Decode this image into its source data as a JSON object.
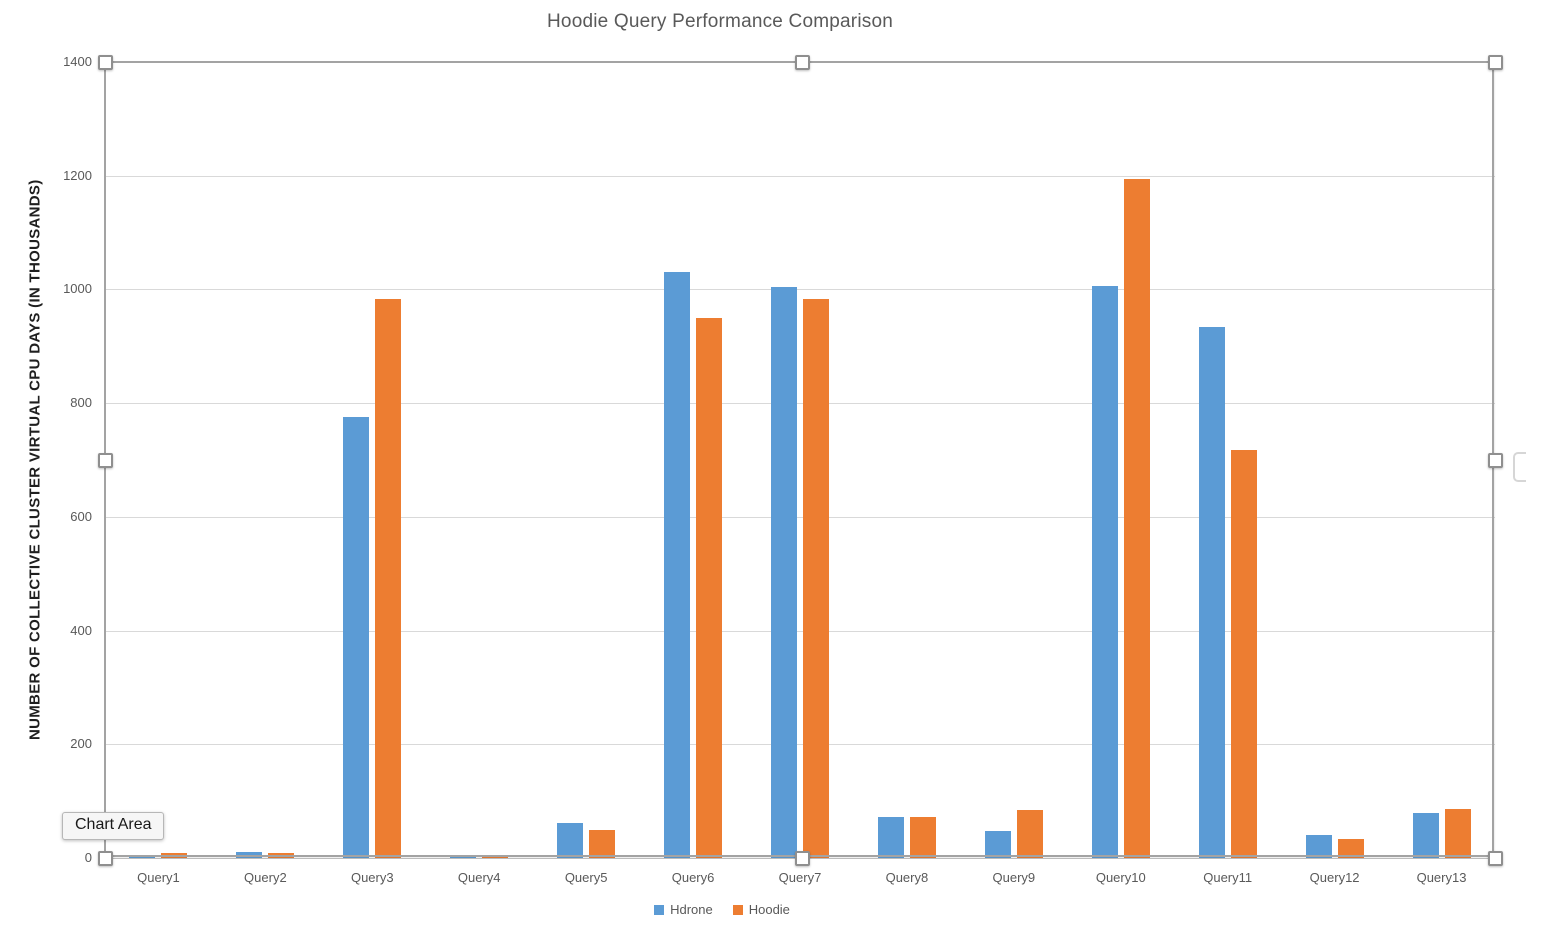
{
  "tooltip": {
    "label": "Chart Area"
  },
  "colors": {
    "hdrone": "#5B9BD5",
    "hoodie": "#ED7D31",
    "gridline": "#d9d9d9",
    "axis_text": "#595959",
    "selection_border": "#a3a3a3"
  },
  "chart_data": {
    "type": "bar",
    "title": "Hoodie Query Performance Comparison",
    "xlabel": "",
    "ylabel": "NUMBER OF COLLECTIVE CLUSTER VIRTUAL CPU DAYS (IN THOUSANDS)",
    "categories": [
      "Query1",
      "Query2",
      "Query3",
      "Query4",
      "Query5",
      "Query6",
      "Query7",
      "Query8",
      "Query9",
      "Query10",
      "Query11",
      "Query12",
      "Query13"
    ],
    "series": [
      {
        "name": "Hdrone",
        "color": "#5B9BD5",
        "values": [
          5,
          10,
          776,
          4,
          62,
          1031,
          1004,
          72,
          48,
          1006,
          934,
          41,
          79
        ]
      },
      {
        "name": "Hoodie",
        "color": "#ED7D31",
        "values": [
          8,
          9,
          984,
          5,
          50,
          950,
          984,
          73,
          84,
          1194,
          717,
          33,
          86
        ]
      }
    ],
    "ylim": [
      0,
      1400
    ],
    "yticks": [
      0,
      200,
      400,
      600,
      800,
      1000,
      1200,
      1400
    ],
    "grid": true,
    "legend_position": "bottom"
  }
}
